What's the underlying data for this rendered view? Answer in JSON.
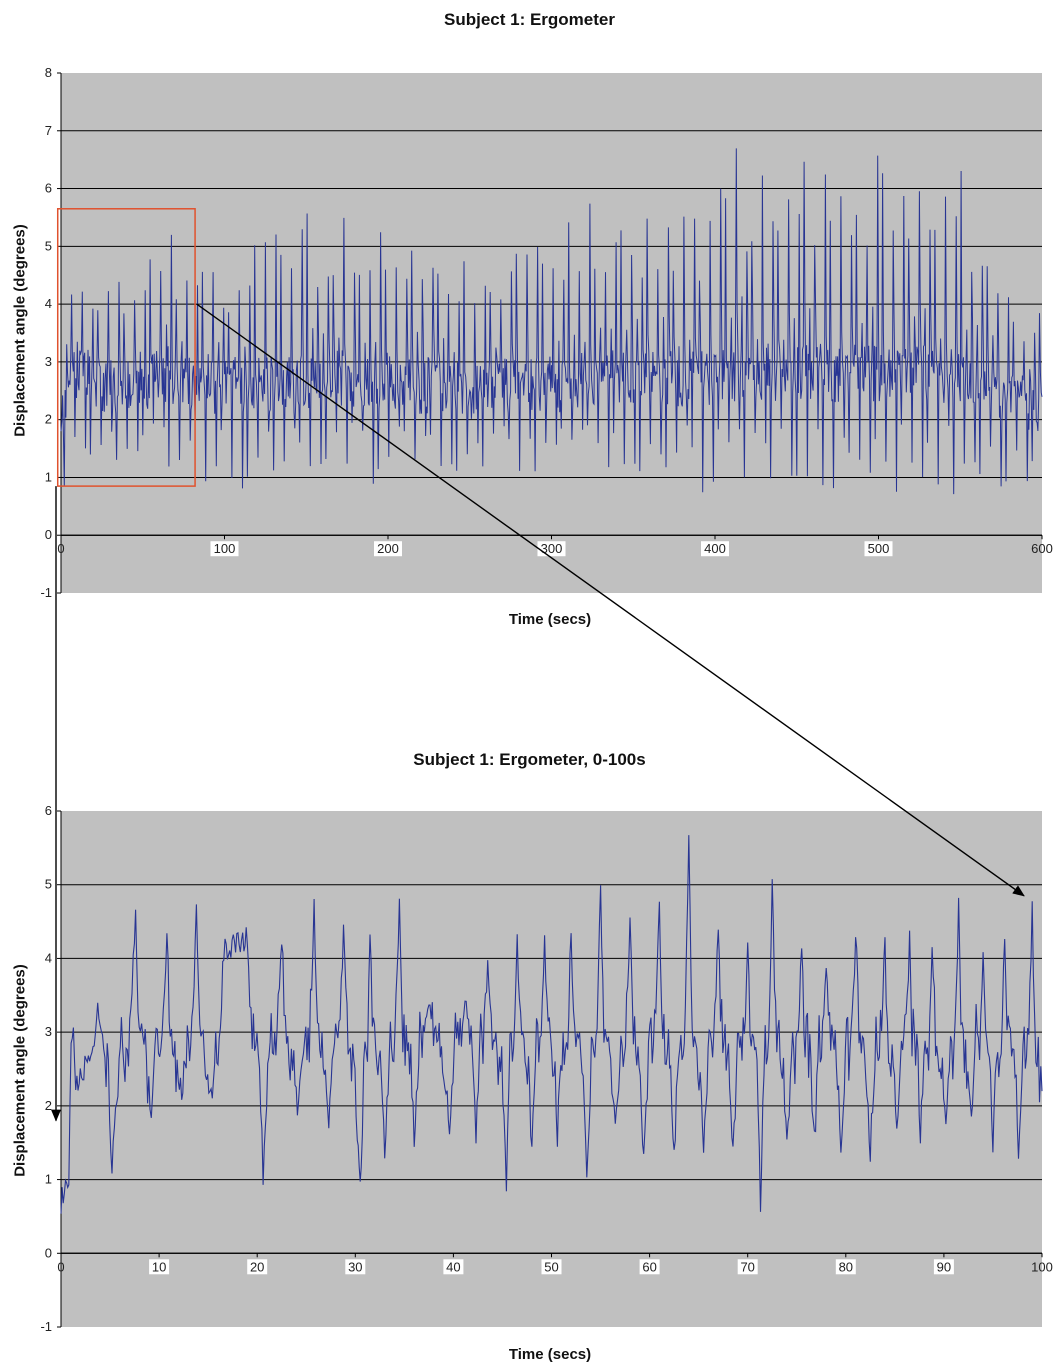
{
  "colors": {
    "plot_bg": "#c0c0c0",
    "series": "#283593",
    "gridline": "#000000",
    "highlight_box": "#e0522e",
    "arrow": "#000000",
    "tick_label_bg": "#ffffff"
  },
  "chart_data": [
    {
      "type": "line",
      "title": "Subject 1: Ergometer",
      "xlabel": "Time (secs)",
      "ylabel": "Displacement angle (degrees)",
      "xlim": [
        0,
        600
      ],
      "ylim": [
        -1,
        8
      ],
      "x_ticks": [
        "0",
        "100",
        "200",
        "300",
        "400",
        "500",
        "600"
      ],
      "y_ticks": [
        "-1",
        "0",
        "1",
        "2",
        "3",
        "4",
        "5",
        "6",
        "7",
        "8"
      ],
      "grid": "horizontal",
      "series": [
        {
          "x": [
            0,
            5,
            10,
            15,
            20,
            25,
            30,
            35,
            40,
            45,
            50,
            55,
            60,
            65,
            70,
            75,
            80,
            85,
            90,
            95,
            100,
            110,
            120,
            130,
            140,
            150,
            160,
            170,
            180,
            190,
            200,
            210,
            220,
            230,
            240,
            250,
            260,
            270,
            280,
            290,
            300,
            310,
            320,
            330,
            340,
            350,
            360,
            370,
            380,
            390,
            400,
            410,
            420,
            430,
            440,
            450,
            460,
            470,
            480,
            490,
            500,
            510,
            520,
            530,
            540,
            550,
            560,
            570,
            580,
            590,
            600
          ],
          "y_max": [
            2.4,
            4.0,
            4.7,
            4.5,
            4.7,
            4.6,
            4.8,
            4.5,
            4.6,
            4.7,
            4.6,
            4.9,
            4.8,
            5.7,
            4.9,
            5.6,
            4.3,
            4.6,
            4.7,
            5.0,
            4.8,
            4.7,
            5.2,
            5.4,
            5.3,
            5.6,
            5.5,
            5.6,
            6.0,
            5.3,
            6.0,
            5.1,
            5.3,
            5.4,
            5.2,
            5.0,
            5.0,
            5.0,
            5.2,
            5.3,
            5.4,
            5.6,
            5.8,
            6.0,
            5.5,
            5.7,
            5.9,
            6.2,
            5.6,
            5.7,
            6.0,
            7.1,
            6.4,
            6.5,
            6.3,
            6.5,
            6.6,
            6.3,
            6.4,
            6.6,
            6.7,
            6.5,
            6.6,
            6.4,
            6.2,
            6.9,
            5.6,
            5.4,
            4.2,
            4.0,
            4.0
          ],
          "y_min": [
            -0.1,
            0.8,
            1.3,
            1.0,
            0.9,
            1.0,
            0.9,
            1.2,
            0.9,
            1.0,
            1.1,
            0.9,
            1.0,
            0.9,
            1.1,
            0.7,
            1.2,
            1.0,
            0.8,
            1.0,
            1.1,
            0.8,
            0.7,
            1.0,
            1.1,
            0.9,
            1.2,
            0.9,
            1.0,
            0.8,
            1.1,
            1.0,
            0.9,
            0.8,
            1.0,
            1.2,
            1.1,
            1.0,
            0.9,
            1.1,
            1.0,
            1.0,
            1.1,
            1.0,
            1.2,
            0.9,
            1.0,
            0.8,
            1.0,
            0.7,
            0.7,
            0.6,
            0.7,
            0.6,
            0.8,
            0.7,
            0.9,
            0.8,
            0.7,
            0.9,
            0.8,
            0.7,
            0.9,
            0.7,
            0.8,
            0.4,
            0.8,
            0.5,
            0.4,
            0.6,
            1.3
          ],
          "y_mean": [
            1.8,
            2.6,
            2.8,
            2.7,
            2.7,
            2.6,
            2.6,
            2.6,
            2.6,
            2.6,
            2.6,
            2.7,
            2.7,
            2.8,
            2.7,
            2.8,
            2.6,
            2.6,
            2.6,
            2.6,
            2.6,
            2.6,
            2.6,
            2.6,
            2.6,
            2.7,
            2.7,
            2.7,
            2.7,
            2.6,
            2.7,
            2.6,
            2.6,
            2.6,
            2.5,
            2.5,
            2.6,
            2.6,
            2.6,
            2.6,
            2.6,
            2.6,
            2.7,
            2.7,
            2.7,
            2.7,
            2.7,
            2.7,
            2.7,
            2.7,
            2.7,
            2.8,
            2.8,
            2.8,
            2.8,
            2.8,
            2.8,
            2.8,
            2.8,
            2.8,
            2.8,
            2.8,
            2.8,
            2.8,
            2.7,
            2.7,
            2.6,
            2.5,
            2.4,
            2.3,
            2.2
          ]
        }
      ]
    },
    {
      "type": "line",
      "title": "Subject 1: Ergometer, 0-100s",
      "xlabel": "Time (secs)",
      "ylabel": "Displacement angle (degrees)",
      "xlim": [
        0,
        100
      ],
      "ylim": [
        -1,
        6
      ],
      "x_ticks": [
        "0",
        "10",
        "20",
        "30",
        "40",
        "50",
        "60",
        "70",
        "80",
        "90",
        "100"
      ],
      "y_ticks": [
        "-1",
        "0",
        "1",
        "2",
        "3",
        "4",
        "5",
        "6"
      ],
      "grid": "horizontal",
      "series": [
        {
          "peaks": [
            {
              "t": 1.5,
              "v": 2.2
            },
            {
              "t": 3.5,
              "v": 2.9
            },
            {
              "t": 7.6,
              "v": 4.5
            },
            {
              "t": 10.8,
              "v": 4.3
            },
            {
              "t": 13.8,
              "v": 4.8
            },
            {
              "t": 16.6,
              "v": 4.1
            },
            {
              "t": 19.0,
              "v": 4.3
            },
            {
              "t": 22.5,
              "v": 4.3
            },
            {
              "t": 25.8,
              "v": 4.7
            },
            {
              "t": 28.8,
              "v": 4.4
            },
            {
              "t": 31.5,
              "v": 4.2
            },
            {
              "t": 34.5,
              "v": 4.8
            },
            {
              "t": 37.5,
              "v": 3.5
            },
            {
              "t": 41.3,
              "v": 3.5
            },
            {
              "t": 43.5,
              "v": 4.1
            },
            {
              "t": 46.5,
              "v": 4.3
            },
            {
              "t": 49.3,
              "v": 4.3
            },
            {
              "t": 52.0,
              "v": 4.3
            },
            {
              "t": 55.0,
              "v": 4.9
            },
            {
              "t": 58.0,
              "v": 4.5
            },
            {
              "t": 61.0,
              "v": 4.6
            },
            {
              "t": 64.0,
              "v": 5.7
            },
            {
              "t": 67.0,
              "v": 4.4
            },
            {
              "t": 70.0,
              "v": 4.1
            },
            {
              "t": 72.5,
              "v": 5.1
            },
            {
              "t": 75.5,
              "v": 4.3
            },
            {
              "t": 78.0,
              "v": 4.0
            },
            {
              "t": 81.0,
              "v": 4.4
            },
            {
              "t": 84.0,
              "v": 4.2
            },
            {
              "t": 86.5,
              "v": 4.3
            },
            {
              "t": 88.8,
              "v": 4.1
            },
            {
              "t": 91.5,
              "v": 4.8
            },
            {
              "t": 94.0,
              "v": 4.0
            },
            {
              "t": 96.2,
              "v": 4.1
            },
            {
              "t": 99.0,
              "v": 4.7
            }
          ],
          "troughs": [
            {
              "t": 0.0,
              "v": 0.7
            },
            {
              "t": 0.8,
              "v": 0.9
            },
            {
              "t": 5.2,
              "v": 1.1
            },
            {
              "t": 9.2,
              "v": 2.0
            },
            {
              "t": 12.3,
              "v": 2.2
            },
            {
              "t": 15.3,
              "v": 2.1
            },
            {
              "t": 20.6,
              "v": 1.1
            },
            {
              "t": 24.1,
              "v": 1.9
            },
            {
              "t": 27.3,
              "v": 1.7
            },
            {
              "t": 30.2,
              "v": 1.5
            },
            {
              "t": 30.6,
              "v": 1.0
            },
            {
              "t": 33.0,
              "v": 1.4
            },
            {
              "t": 36.0,
              "v": 1.5
            },
            {
              "t": 39.6,
              "v": 1.7
            },
            {
              "t": 42.3,
              "v": 1.6
            },
            {
              "t": 45.4,
              "v": 0.9
            },
            {
              "t": 48.0,
              "v": 1.4
            },
            {
              "t": 50.6,
              "v": 1.6
            },
            {
              "t": 53.6,
              "v": 1.0
            },
            {
              "t": 56.5,
              "v": 1.6
            },
            {
              "t": 59.4,
              "v": 1.2
            },
            {
              "t": 62.5,
              "v": 1.3
            },
            {
              "t": 65.5,
              "v": 1.4
            },
            {
              "t": 68.5,
              "v": 1.3
            },
            {
              "t": 71.3,
              "v": 0.7
            },
            {
              "t": 74.0,
              "v": 1.4
            },
            {
              "t": 76.8,
              "v": 1.5
            },
            {
              "t": 79.5,
              "v": 1.4
            },
            {
              "t": 82.5,
              "v": 1.4
            },
            {
              "t": 85.2,
              "v": 1.6
            },
            {
              "t": 87.6,
              "v": 1.6
            },
            {
              "t": 90.2,
              "v": 1.6
            },
            {
              "t": 92.8,
              "v": 1.7
            },
            {
              "t": 95.0,
              "v": 1.5
            },
            {
              "t": 97.6,
              "v": 1.4
            },
            {
              "t": 100.0,
              "v": 2.2
            }
          ]
        }
      ]
    }
  ]
}
